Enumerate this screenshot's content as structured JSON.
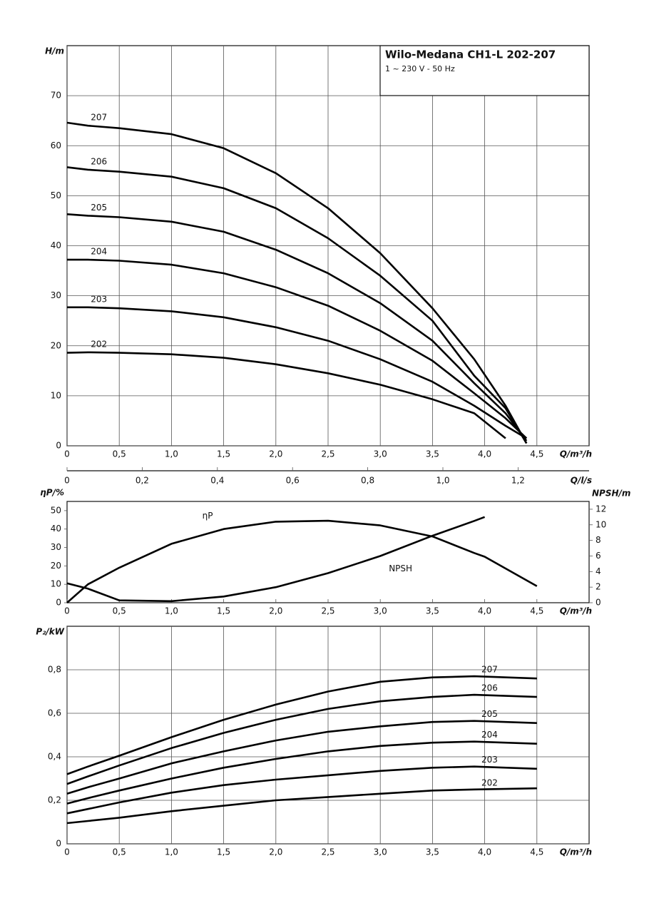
{
  "chart_data": [
    {
      "type": "line",
      "title": "Wilo-Medana CH1-L 202-207",
      "subtitle": "1 ~ 230 V - 50 Hz",
      "xlabel": "Q/m³/h",
      "ylabel": "H/m",
      "grid": true,
      "color": "#000000",
      "x": [
        0,
        0.2,
        0.5,
        1.0,
        1.5,
        2.0,
        2.5,
        3.0,
        3.5,
        3.9,
        4.2,
        4.4
      ],
      "xlim": [
        0,
        5
      ],
      "ylim": [
        0,
        80
      ],
      "xticks": [
        0,
        {
          "value": 0.5,
          "label": "0,5"
        },
        {
          "value": 1.0,
          "label": "1,0"
        },
        {
          "value": 1.5,
          "label": "1,5"
        },
        {
          "value": 2.0,
          "label": "2,0"
        },
        {
          "value": 2.5,
          "label": "2,5"
        },
        {
          "value": 3.0,
          "label": "3,0"
        },
        {
          "value": 3.5,
          "label": "3,5"
        },
        {
          "value": 4.0,
          "label": "4,0"
        },
        {
          "value": 4.5,
          "label": "4,5"
        }
      ],
      "yticks": [
        0,
        10,
        20,
        30,
        40,
        50,
        60,
        70
      ],
      "x2label": "Q/l/s",
      "x2lim": [
        0,
        1.389
      ],
      "x2ticks": [
        0,
        {
          "value": 0.2,
          "label": "0,2"
        },
        {
          "value": 0.4,
          "label": "0,4"
        },
        {
          "value": 0.6,
          "label": "0,6"
        },
        {
          "value": 0.8,
          "label": "0,8"
        },
        {
          "value": 1.0,
          "label": "1,0"
        },
        {
          "value": 1.2,
          "label": "1,2"
        }
      ],
      "series": [
        {
          "name": "207",
          "values": [
            64.6,
            64,
            63.5,
            62.3,
            59.5,
            54.5,
            47.5,
            38.5,
            27.5,
            17.3,
            8,
            0.5
          ]
        },
        {
          "name": "206",
          "values": [
            55.7,
            55.2,
            54.8,
            53.8,
            51.5,
            47.5,
            41.5,
            34,
            25,
            14,
            7.5,
            0.5
          ]
        },
        {
          "name": "205",
          "values": [
            46.3,
            46,
            45.7,
            44.8,
            42.8,
            39.2,
            34.5,
            28.5,
            21,
            12.5,
            6.5,
            1
          ]
        },
        {
          "name": "204",
          "values": [
            37.2,
            37.2,
            37,
            36.2,
            34.5,
            31.7,
            28,
            23,
            17,
            10.5,
            5.5,
            1.5
          ]
        },
        {
          "name": "203",
          "values": [
            27.7,
            27.7,
            27.5,
            26.9,
            25.7,
            23.7,
            21,
            17.3,
            12.8,
            8,
            4,
            1.5
          ]
        },
        {
          "name": "202",
          "values": [
            18.6,
            18.7,
            18.6,
            18.3,
            17.6,
            16.3,
            14.5,
            12.2,
            9.3,
            6.5,
            1.5,
            null
          ]
        }
      ]
    },
    {
      "type": "line",
      "xlabel": "Q/m³/h",
      "ylabel": "ηP/%",
      "y2label": "NPSH/m",
      "grid": false,
      "color": "#000000",
      "x": [
        0,
        0.2,
        0.5,
        1.0,
        1.5,
        2.0,
        2.5,
        3.0,
        3.5,
        3.9,
        4.0,
        4.5
      ],
      "xlim": [
        0,
        5
      ],
      "ylim": [
        0,
        55
      ],
      "y2lim": [
        0,
        13
      ],
      "xticks": [
        0,
        {
          "value": 0.5,
          "label": "0,5"
        },
        {
          "value": 1.0,
          "label": "1,0"
        },
        {
          "value": 1.5,
          "label": "1,5"
        },
        {
          "value": 2.0,
          "label": "2,0"
        },
        {
          "value": 2.5,
          "label": "2,5"
        },
        {
          "value": 3.0,
          "label": "3,0"
        },
        {
          "value": 3.5,
          "label": "3,5"
        },
        {
          "value": 4.0,
          "label": "4,0"
        },
        {
          "value": 4.5,
          "label": "4,5"
        }
      ],
      "yticks": [
        0,
        10,
        20,
        30,
        40,
        50
      ],
      "y2ticks": [
        0,
        2,
        4,
        6,
        8,
        10,
        12
      ],
      "series": [
        {
          "name": "ηP",
          "values": [
            0,
            10,
            19,
            32,
            40,
            44,
            44.5,
            42,
            36,
            27,
            25,
            9
          ]
        },
        {
          "name": "NPSH",
          "axis": "y2",
          "values": [
            2.5,
            1.8,
            0.3,
            0.2,
            0.8,
            2,
            3.8,
            6,
            8.6,
            10.5,
            11,
            null
          ]
        }
      ]
    },
    {
      "type": "line",
      "xlabel": "Q/m³/h",
      "ylabel": "P₂/kW",
      "grid": true,
      "color": "#000000",
      "x": [
        0,
        0.2,
        0.5,
        1.0,
        1.5,
        2.0,
        2.5,
        3.0,
        3.5,
        3.9,
        4.5
      ],
      "xlim": [
        0,
        5
      ],
      "ylim": [
        0,
        1.0
      ],
      "xticks": [
        0,
        {
          "value": 0.5,
          "label": "0,5"
        },
        {
          "value": 1.0,
          "label": "1,0"
        },
        {
          "value": 1.5,
          "label": "1,5"
        },
        {
          "value": 2.0,
          "label": "2,0"
        },
        {
          "value": 2.5,
          "label": "2,5"
        },
        {
          "value": 3.0,
          "label": "3,0"
        },
        {
          "value": 3.5,
          "label": "3,5"
        },
        {
          "value": 4.0,
          "label": "4,0"
        },
        {
          "value": 4.5,
          "label": "4,5"
        }
      ],
      "yticks": [
        0,
        {
          "value": 0.2,
          "label": "0,2"
        },
        {
          "value": 0.4,
          "label": "0,4"
        },
        {
          "value": 0.6,
          "label": "0,6"
        },
        {
          "value": 0.8,
          "label": "0,8"
        }
      ],
      "series": [
        {
          "name": "207",
          "values": [
            0.32,
            0.355,
            0.405,
            0.49,
            0.57,
            0.64,
            0.7,
            0.745,
            0.765,
            0.77,
            0.76
          ]
        },
        {
          "name": "206",
          "values": [
            0.275,
            0.31,
            0.36,
            0.44,
            0.51,
            0.57,
            0.62,
            0.655,
            0.675,
            0.685,
            0.675
          ]
        },
        {
          "name": "205",
          "values": [
            0.23,
            0.26,
            0.3,
            0.37,
            0.425,
            0.475,
            0.515,
            0.54,
            0.56,
            0.565,
            0.555
          ]
        },
        {
          "name": "204",
          "values": [
            0.185,
            0.21,
            0.245,
            0.3,
            0.35,
            0.39,
            0.425,
            0.45,
            0.465,
            0.47,
            0.46
          ]
        },
        {
          "name": "203",
          "values": [
            0.14,
            0.16,
            0.19,
            0.235,
            0.27,
            0.295,
            0.315,
            0.335,
            0.35,
            0.355,
            0.345
          ]
        },
        {
          "name": "202",
          "values": [
            0.095,
            0.105,
            0.12,
            0.15,
            0.175,
            0.2,
            0.215,
            0.23,
            0.245,
            0.25,
            0.255
          ]
        }
      ]
    }
  ]
}
